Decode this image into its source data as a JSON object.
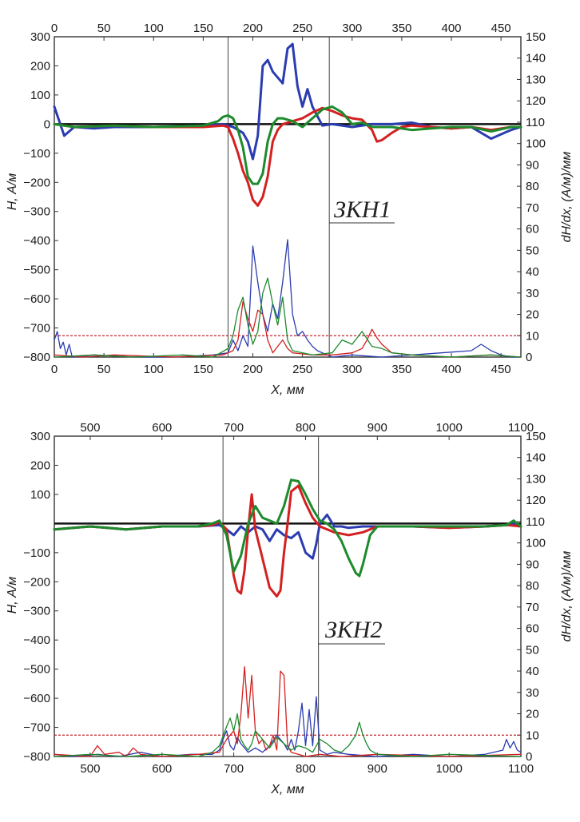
{
  "chart_data": [
    {
      "type": "line",
      "zone_label": "ЗКН1",
      "xlabel": "X, мм",
      "ylabel_left": "H, А/м",
      "ylabel_right": "dH/dx, (А/м)/мм",
      "xlim": [
        0,
        470
      ],
      "xticks": [
        0,
        50,
        100,
        150,
        200,
        250,
        300,
        350,
        400,
        450
      ],
      "ylim_left": [
        -800,
        300
      ],
      "yticks_left": [
        300,
        200,
        100,
        0,
        -100,
        -200,
        -300,
        -400,
        -500,
        -600,
        -700,
        -800
      ],
      "ylim_right": [
        0,
        150
      ],
      "yticks_right": [
        150,
        140,
        130,
        120,
        110,
        100,
        90,
        80,
        70,
        60,
        50,
        40,
        30,
        20,
        10,
        0
      ],
      "zone_bounds": [
        175,
        277
      ],
      "threshold_right": 10,
      "h_series": [
        {
          "color": "#2b3cb0",
          "x": [
            0,
            5,
            10,
            20,
            40,
            60,
            100,
            150,
            170,
            180,
            190,
            195,
            200,
            205,
            210,
            215,
            220,
            230,
            235,
            240,
            245,
            250,
            255,
            260,
            270,
            280,
            300,
            320,
            340,
            360,
            380,
            400,
            420,
            440,
            460,
            470
          ],
          "y": [
            60,
            10,
            -40,
            -10,
            -15,
            -10,
            -10,
            -5,
            0,
            -10,
            -30,
            -60,
            -120,
            -40,
            200,
            220,
            180,
            140,
            260,
            275,
            130,
            60,
            120,
            60,
            -5,
            0,
            -10,
            0,
            0,
            5,
            -10,
            -15,
            -10,
            -50,
            -20,
            -10
          ]
        },
        {
          "color": "#d42020",
          "x": [
            0,
            20,
            60,
            100,
            150,
            170,
            175,
            180,
            185,
            190,
            195,
            200,
            205,
            210,
            215,
            220,
            225,
            230,
            240,
            250,
            260,
            270,
            280,
            290,
            300,
            310,
            320,
            325,
            330,
            340,
            350,
            360,
            380,
            400,
            420,
            440,
            460,
            470
          ],
          "y": [
            0,
            -10,
            -5,
            -10,
            -10,
            -5,
            -10,
            -50,
            -100,
            -160,
            -200,
            -260,
            -280,
            -250,
            -180,
            -60,
            -20,
            0,
            10,
            20,
            40,
            55,
            45,
            30,
            20,
            15,
            -20,
            -60,
            -55,
            -30,
            -10,
            -5,
            -10,
            -15,
            -10,
            -20,
            -10,
            -10
          ]
        },
        {
          "color": "#1d8a2c",
          "x": [
            0,
            20,
            60,
            100,
            150,
            165,
            170,
            175,
            180,
            185,
            190,
            195,
            200,
            205,
            210,
            215,
            220,
            225,
            230,
            240,
            250,
            260,
            270,
            280,
            290,
            300,
            310,
            320,
            340,
            360,
            380,
            400,
            420,
            440,
            460,
            470
          ],
          "y": [
            0,
            -10,
            -5,
            -10,
            -5,
            10,
            25,
            30,
            20,
            -20,
            -80,
            -180,
            -205,
            -205,
            -170,
            -60,
            0,
            20,
            20,
            10,
            -10,
            20,
            50,
            60,
            40,
            0,
            5,
            -10,
            -10,
            -20,
            -15,
            -10,
            -10,
            -25,
            -10,
            -10
          ]
        }
      ],
      "deriv_series": [
        {
          "color": "#2b3cb0",
          "x": [
            0,
            3,
            6,
            9,
            12,
            15,
            18,
            20,
            40,
            80,
            120,
            160,
            175,
            180,
            185,
            190,
            195,
            200,
            205,
            210,
            215,
            220,
            225,
            230,
            235,
            240,
            245,
            250,
            255,
            260,
            265,
            270,
            275,
            280,
            300,
            330,
            360,
            390,
            420,
            430,
            440,
            450,
            460,
            470
          ],
          "y": [
            8,
            12,
            4,
            7,
            1,
            6,
            0,
            0,
            1,
            0,
            0,
            1,
            2,
            8,
            3,
            10,
            5,
            52,
            35,
            20,
            12,
            25,
            18,
            35,
            55,
            20,
            10,
            12,
            8,
            5,
            3,
            2,
            1,
            0,
            1,
            0,
            1,
            2,
            3,
            6,
            3,
            1,
            0,
            0
          ]
        },
        {
          "color": "#d42020",
          "x": [
            0,
            30,
            60,
            120,
            170,
            180,
            185,
            190,
            195,
            200,
            205,
            210,
            215,
            220,
            225,
            230,
            235,
            240,
            260,
            280,
            300,
            310,
            315,
            320,
            325,
            330,
            340,
            360,
            400,
            440,
            470
          ],
          "y": [
            1,
            0,
            1,
            0,
            1,
            3,
            8,
            26,
            18,
            12,
            22,
            20,
            8,
            2,
            5,
            8,
            4,
            2,
            1,
            1,
            2,
            4,
            8,
            13,
            9,
            6,
            2,
            1,
            0,
            1,
            0
          ]
        },
        {
          "color": "#1d8a2c",
          "x": [
            0,
            40,
            80,
            130,
            160,
            175,
            180,
            185,
            190,
            195,
            200,
            205,
            210,
            215,
            220,
            225,
            230,
            235,
            240,
            260,
            280,
            290,
            300,
            310,
            320,
            330,
            340,
            360,
            400,
            440,
            470
          ],
          "y": [
            0,
            1,
            0,
            1,
            0,
            4,
            10,
            22,
            28,
            15,
            6,
            12,
            30,
            37,
            25,
            15,
            28,
            8,
            3,
            1,
            2,
            8,
            6,
            12,
            5,
            4,
            2,
            1,
            0,
            1,
            0
          ]
        }
      ]
    },
    {
      "type": "line",
      "zone_label": "ЗКН2",
      "xlabel": "X, мм",
      "ylabel_left": "H, А/м",
      "ylabel_right": "dH/dx, (А/м)/мм",
      "xlim": [
        450,
        1100
      ],
      "xticks_bottom": [
        500,
        600,
        700,
        800,
        900,
        1000,
        1100
      ],
      "xticks_top": [
        500,
        600,
        700,
        800,
        900,
        1000,
        1100
      ],
      "ylim_left": [
        -800,
        300
      ],
      "yticks_left": [
        300,
        200,
        100,
        -100,
        -200,
        -300,
        -400,
        -500,
        -600,
        -700,
        -800
      ],
      "ylim_right": [
        0,
        150
      ],
      "yticks_right": [
        150,
        140,
        130,
        120,
        110,
        100,
        90,
        80,
        70,
        60,
        50,
        40,
        30,
        20,
        10,
        0
      ],
      "zone_bounds": [
        685,
        818
      ],
      "threshold_right": 10,
      "h_series": [
        {
          "color": "#2b3cb0",
          "x": [
            450,
            500,
            550,
            600,
            650,
            680,
            690,
            700,
            710,
            720,
            730,
            740,
            750,
            760,
            770,
            780,
            790,
            800,
            810,
            815,
            820,
            830,
            840,
            850,
            860,
            880,
            900,
            950,
            1000,
            1050,
            1080,
            1090,
            1100
          ],
          "y": [
            -20,
            -10,
            -20,
            -10,
            -10,
            -5,
            -20,
            -40,
            -10,
            -30,
            -10,
            -20,
            -60,
            -20,
            -40,
            -50,
            -30,
            -100,
            -120,
            -70,
            0,
            30,
            -10,
            -10,
            -15,
            -10,
            -10,
            -10,
            -15,
            -10,
            -5,
            0,
            -10
          ]
        },
        {
          "color": "#d42020",
          "x": [
            450,
            500,
            550,
            600,
            650,
            670,
            680,
            690,
            700,
            705,
            710,
            715,
            720,
            725,
            730,
            740,
            750,
            760,
            765,
            770,
            775,
            780,
            790,
            800,
            810,
            820,
            840,
            860,
            880,
            900,
            950,
            1000,
            1050,
            1080,
            1100
          ],
          "y": [
            -20,
            -10,
            -20,
            -10,
            -10,
            -5,
            5,
            -20,
            -180,
            -230,
            -240,
            -160,
            -20,
            100,
            -20,
            -120,
            -220,
            -250,
            -230,
            -100,
            0,
            110,
            130,
            70,
            20,
            -10,
            -30,
            -40,
            -30,
            -10,
            -10,
            -15,
            -10,
            -5,
            -10
          ]
        },
        {
          "color": "#1d8a2c",
          "x": [
            450,
            500,
            550,
            600,
            650,
            670,
            680,
            690,
            700,
            710,
            720,
            730,
            740,
            750,
            760,
            770,
            780,
            790,
            800,
            810,
            820,
            830,
            840,
            850,
            860,
            870,
            875,
            880,
            890,
            900,
            950,
            1000,
            1050,
            1080,
            1090,
            1100
          ],
          "y": [
            -20,
            -10,
            -20,
            -10,
            -10,
            0,
            10,
            -40,
            -165,
            -110,
            0,
            60,
            20,
            10,
            0,
            60,
            150,
            145,
            100,
            50,
            10,
            0,
            -20,
            -60,
            -120,
            -170,
            -180,
            -140,
            -40,
            -10,
            -10,
            -10,
            -10,
            -5,
            10,
            -10
          ]
        }
      ],
      "deriv_series": [
        {
          "color": "#2b3cb0",
          "x": [
            450,
            480,
            510,
            540,
            570,
            600,
            640,
            670,
            680,
            685,
            690,
            695,
            700,
            705,
            710,
            720,
            730,
            740,
            750,
            760,
            770,
            775,
            780,
            785,
            790,
            795,
            800,
            805,
            810,
            815,
            820,
            830,
            840,
            860,
            900,
            950,
            1000,
            1050,
            1075,
            1080,
            1085,
            1090,
            1095,
            1100
          ],
          "y": [
            1,
            0,
            1,
            0,
            2,
            0,
            1,
            1,
            3,
            8,
            12,
            5,
            3,
            9,
            6,
            2,
            4,
            2,
            5,
            10,
            6,
            3,
            8,
            3,
            12,
            25,
            5,
            22,
            5,
            28,
            3,
            1,
            2,
            1,
            0,
            1,
            0,
            1,
            3,
            8,
            4,
            7,
            3,
            2
          ]
        },
        {
          "color": "#d42020",
          "x": [
            450,
            500,
            510,
            520,
            540,
            550,
            560,
            570,
            600,
            650,
            680,
            690,
            700,
            705,
            710,
            715,
            720,
            725,
            730,
            735,
            740,
            745,
            750,
            755,
            760,
            765,
            770,
            775,
            780,
            790,
            800,
            820,
            850,
            900,
            1000,
            1100
          ],
          "y": [
            1,
            0,
            5,
            1,
            2,
            0,
            4,
            1,
            0,
            1,
            2,
            8,
            12,
            6,
            20,
            42,
            18,
            38,
            12,
            6,
            8,
            3,
            5,
            10,
            3,
            40,
            38,
            5,
            2,
            1,
            0,
            1,
            0,
            1,
            0,
            1
          ]
        },
        {
          "color": "#1d8a2c",
          "x": [
            450,
            500,
            550,
            600,
            650,
            670,
            680,
            690,
            695,
            700,
            705,
            710,
            715,
            720,
            725,
            730,
            740,
            750,
            760,
            770,
            780,
            790,
            800,
            810,
            820,
            830,
            840,
            850,
            860,
            870,
            875,
            880,
            885,
            890,
            900,
            950,
            1000,
            1100
          ],
          "y": [
            0,
            1,
            0,
            1,
            0,
            2,
            5,
            14,
            18,
            12,
            20,
            8,
            5,
            3,
            6,
            12,
            8,
            4,
            9,
            6,
            3,
            5,
            4,
            2,
            8,
            6,
            3,
            2,
            5,
            10,
            16,
            10,
            6,
            3,
            1,
            0,
            1,
            0
          ]
        }
      ]
    }
  ]
}
